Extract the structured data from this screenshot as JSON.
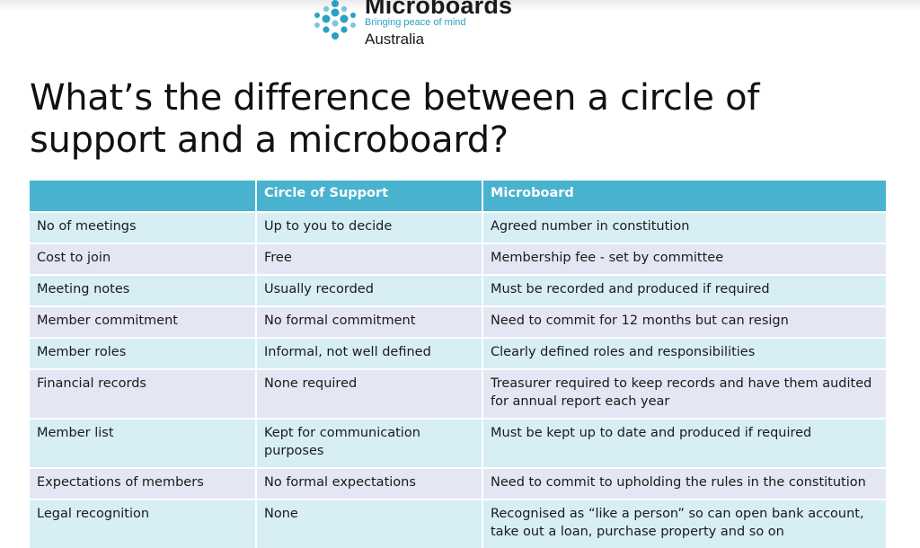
{
  "logo": {
    "name": "Microboards",
    "tagline": "Bringing peace of mind",
    "country": "Australia",
    "colors": {
      "mark": "#2aa0c4",
      "mark_light": "#7cc6dd"
    }
  },
  "slide": {
    "title_line1": "What’s the difference between a circle of",
    "title_line2": "support and a microboard?"
  },
  "table": {
    "headers": [
      "",
      "Circle of Support",
      "Microboard"
    ],
    "rows": [
      [
        "No of meetings",
        "Up to you to decide",
        "Agreed number in constitution"
      ],
      [
        "Cost to join",
        "Free",
        "Membership fee - set by committee"
      ],
      [
        "Meeting notes",
        "Usually recorded",
        "Must be recorded and produced if required"
      ],
      [
        "Member commitment",
        "No formal commitment",
        "Need to commit for 12 months but can resign"
      ],
      [
        "Member roles",
        "Informal, not well defined",
        "Clearly defined roles and responsibilities"
      ],
      [
        "Financial records",
        "None required",
        "Treasurer required to keep records and have them audited for annual report each year"
      ],
      [
        "Member list",
        "Kept for communication purposes",
        "Must be kept up to date and produced if required"
      ],
      [
        "Expectations of members",
        "No formal expectations",
        "Need to commit to upholding the rules in the constitution"
      ],
      [
        "Legal recognition",
        "None",
        "Recognised as “like a person” so can open bank account, take out a loan, purchase property and so on"
      ]
    ],
    "colors": {
      "header": "#49b2cf",
      "row_a": "#d7eef5",
      "row_b": "#e4e7f3"
    }
  }
}
